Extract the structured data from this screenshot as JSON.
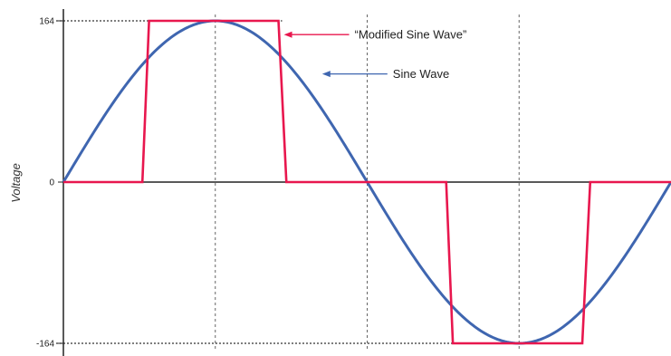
{
  "chart_data": {
    "type": "line",
    "title": "",
    "xlabel": "",
    "ylabel": "Voltage",
    "ylim": [
      -164,
      164
    ],
    "yticks": [
      {
        "value": 164,
        "label": "164"
      },
      {
        "value": 0,
        "label": "0"
      },
      {
        "value": -164,
        "label": "-164"
      }
    ],
    "xlim": [
      0,
      1
    ],
    "x_ticks": [
      0.25,
      0.5,
      0.75
    ],
    "grid": false,
    "series": [
      {
        "name": "Sine Wave",
        "kind": "sine",
        "amplitude": 164,
        "period": 1,
        "color": "#3f66b0"
      },
      {
        "name": "“Modified Sine Wave”",
        "kind": "modified-sine",
        "color": "#e8174e",
        "x": [
          0,
          0.13,
          0.141,
          0.354,
          0.367,
          0.63,
          0.641,
          0.854,
          0.867,
          1.0
        ],
        "y": [
          0,
          0,
          164,
          164,
          0,
          0,
          -164,
          -164,
          0,
          0
        ]
      }
    ],
    "annotations": [
      {
        "text": "“Modified Sine Wave”",
        "color": "#e8174e",
        "x": 0.354,
        "y": 150
      },
      {
        "text": "Sine Wave",
        "color": "#3f66b0",
        "x": 0.417,
        "y": 110
      }
    ],
    "reference_lines": [
      {
        "axis": "y",
        "value": 164
      },
      {
        "axis": "y",
        "value": -164
      }
    ]
  }
}
